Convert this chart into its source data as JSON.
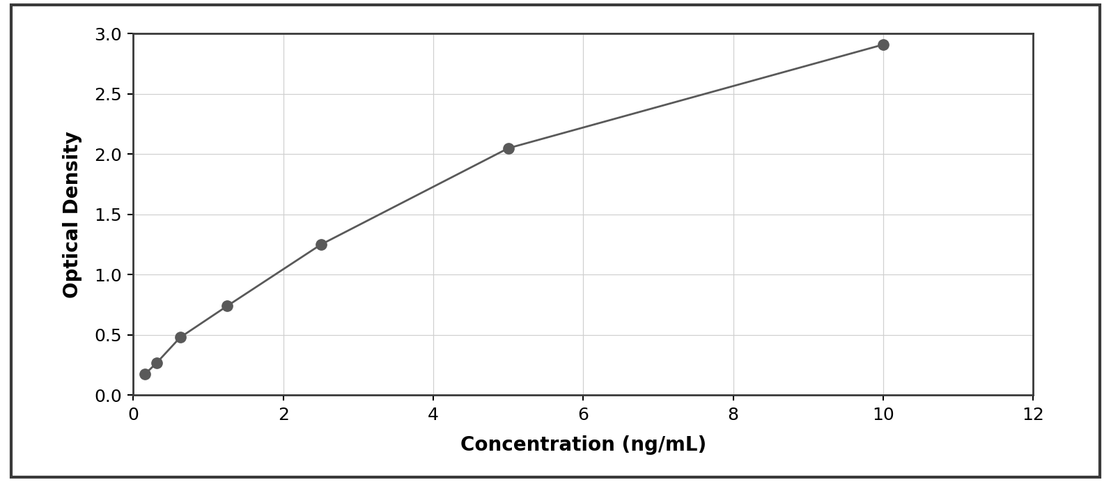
{
  "x_data": [
    0.156,
    0.313,
    0.625,
    1.25,
    2.5,
    5.0,
    10.0
  ],
  "y_data": [
    0.175,
    0.27,
    0.48,
    0.74,
    1.25,
    2.05,
    2.91
  ],
  "xlabel": "Concentration (ng/mL)",
  "ylabel": "Optical Density",
  "xlim": [
    0,
    12
  ],
  "ylim": [
    0,
    3.0
  ],
  "xticks": [
    0,
    2,
    4,
    6,
    8,
    10,
    12
  ],
  "yticks": [
    0,
    0.5,
    1.0,
    1.5,
    2.0,
    2.5,
    3.0
  ],
  "marker_color": "#595959",
  "line_color": "#595959",
  "marker_size": 11,
  "line_width": 2.0,
  "grid_color": "#d0d0d0",
  "background_color": "#ffffff",
  "border_color": "#3a3a3a",
  "outer_border_color": "#3a3a3a",
  "xlabel_fontsize": 20,
  "ylabel_fontsize": 20,
  "tick_fontsize": 18,
  "xlabel_fontweight": "bold",
  "ylabel_fontweight": "bold"
}
